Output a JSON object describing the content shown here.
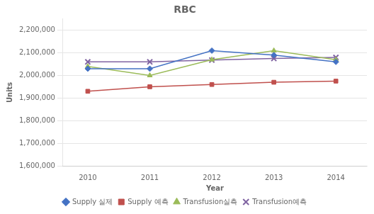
{
  "chart_data": {
    "type": "line",
    "title": "RBC",
    "x_label": "Year",
    "y_label": "Units",
    "x": [
      2010,
      2011,
      2012,
      2013,
      2014
    ],
    "series": [
      {
        "name": "Supply 실제",
        "color": "#4472C4",
        "marker": "diamond",
        "values": [
          2030000,
          2030000,
          2110000,
          2090000,
          2060000
        ]
      },
      {
        "name": "Supply 예측",
        "color": "#C0504D",
        "marker": "square",
        "values": [
          1930000,
          1950000,
          1960000,
          1970000,
          1975000
        ]
      },
      {
        "name": "Transfusion실측",
        "color": "#9BBB59",
        "marker": "triangle",
        "values": [
          2040000,
          2000000,
          2070000,
          2110000,
          2070000
        ]
      },
      {
        "name": "Transfusion예측",
        "color": "#8064A2",
        "marker": "x",
        "values": [
          2060000,
          2060000,
          2068000,
          2075000,
          2080000
        ]
      }
    ],
    "xlim": [
      2009.6,
      2014.5
    ],
    "xticks": [
      2010,
      2011,
      2012,
      2013,
      2014
    ],
    "ylim": [
      1600000,
      2250000
    ],
    "yticks": [
      {
        "value": 1600000,
        "label": "1,600,000"
      },
      {
        "value": 1700000,
        "label": "1,700,000"
      },
      {
        "value": 1800000,
        "label": "1,800,000"
      },
      {
        "value": 1900000,
        "label": "1,900,000"
      },
      {
        "value": 2000000,
        "label": "2,000,000"
      },
      {
        "value": 2100000,
        "label": "2,100,000"
      },
      {
        "value": 2200000,
        "label": "2,200,000"
      }
    ],
    "grid": "y",
    "legend": "bottom"
  }
}
